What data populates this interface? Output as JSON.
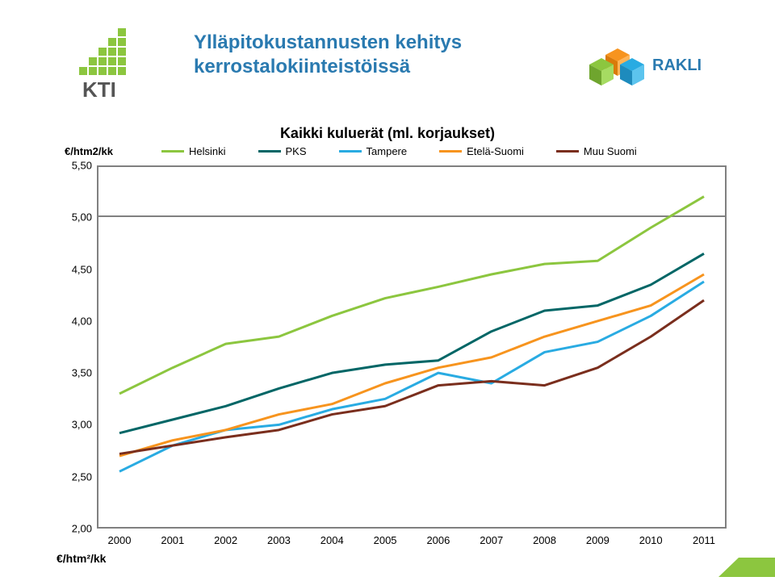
{
  "title_line1": "Ylläpitokustannusten kehitys",
  "title_line2": "kerrostalokiinteistöissä",
  "subtitle": "Kaikki kuluerät (ml. korjaukset)",
  "y_axis_label": "€/htm2/kk",
  "footer_label": "€/htm²/kk",
  "chart": {
    "type": "line",
    "background_color": "#ffffff",
    "panel_border_color": "#808080",
    "x_categories": [
      "2000",
      "2001",
      "2002",
      "2003",
      "2004",
      "2005",
      "2006",
      "2007",
      "2008",
      "2009",
      "2010",
      "2011"
    ],
    "ylim": [
      2.0,
      5.5
    ],
    "ytick_step": 0.5,
    "y_ticks": [
      "2,00",
      "2,50",
      "3,00",
      "3,50",
      "4,00",
      "4,50",
      "5,00",
      "5,50"
    ],
    "panel_break_after": 0,
    "line_width": 3,
    "title_fontsize": 24,
    "title_color": "#2a7ab0",
    "axis_fontsize": 13,
    "series": [
      {
        "name": "Helsinki",
        "color": "#8cc63f",
        "values": [
          3.3,
          3.55,
          3.78,
          3.85,
          4.05,
          4.22,
          4.33,
          4.45,
          4.55,
          4.58,
          4.9,
          5.2
        ]
      },
      {
        "name": "PKS",
        "color": "#006666",
        "values": [
          2.92,
          3.05,
          3.18,
          3.35,
          3.5,
          3.58,
          3.62,
          3.9,
          4.1,
          4.15,
          4.35,
          4.65
        ]
      },
      {
        "name": "Tampere",
        "color": "#29abe2",
        "values": [
          2.55,
          2.8,
          2.95,
          3.0,
          3.15,
          3.25,
          3.5,
          3.4,
          3.7,
          3.8,
          4.05,
          4.38
        ]
      },
      {
        "name": "Etelä-Suomi",
        "color": "#f7941e",
        "values": [
          2.7,
          2.85,
          2.95,
          3.1,
          3.2,
          3.4,
          3.55,
          3.65,
          3.85,
          4.0,
          4.15,
          4.45
        ]
      },
      {
        "name": "Muu Suomi",
        "color": "#7a2e1d",
        "values": [
          2.72,
          2.8,
          2.88,
          2.95,
          3.1,
          3.18,
          3.38,
          3.42,
          3.38,
          3.55,
          3.85,
          4.2
        ]
      }
    ]
  },
  "logos": {
    "kti_bars_color": "#8cc63f",
    "kti_text_color": "#555555",
    "kti_text": "KTI",
    "rakli_text": "RAKLI",
    "rakli_text_color": "#2a7ab0",
    "rakli_cube_colors": [
      "#f7941e",
      "#8cc63f",
      "#29abe2"
    ]
  },
  "corner_accent_color": "#8cc63f"
}
